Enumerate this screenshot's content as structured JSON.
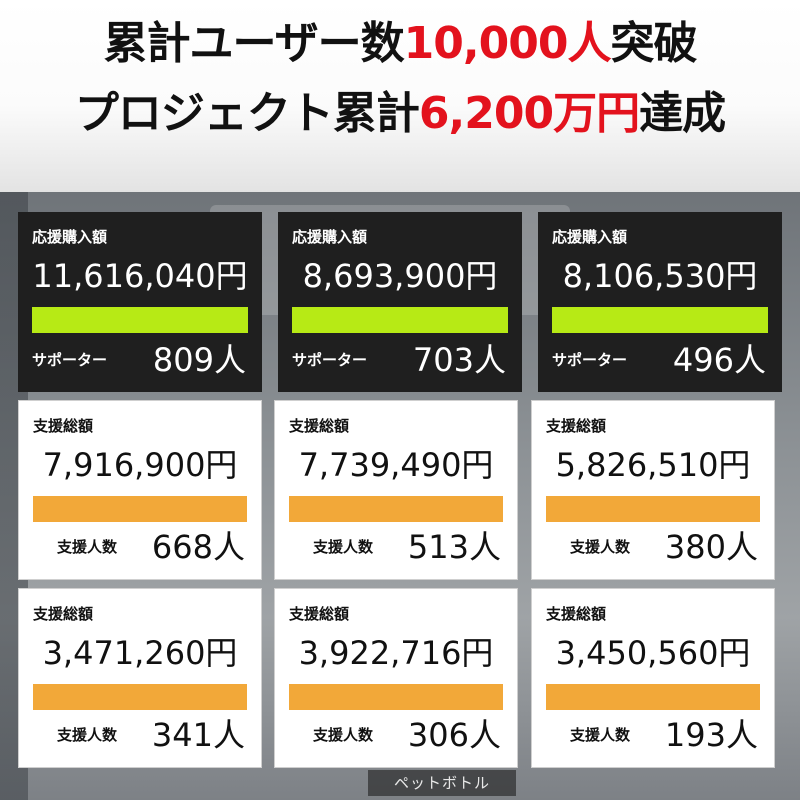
{
  "header": {
    "line1_prefix": "累計ユーザー数",
    "line1_highlight": "10,000人",
    "line1_suffix": "突破",
    "line2_prefix": "プロジェクト累計",
    "line2_highlight": "6,200万円",
    "line2_suffix": "達成"
  },
  "colors": {
    "highlight": "#e3121d",
    "dark_card_bar": "#b7ea15",
    "light_card_bar": "#f2a839",
    "dark_card_bg": "#1f1f1f"
  },
  "background_label": "ペットボトル",
  "cards": [
    {
      "label": "応援購入額",
      "amount": "11,616,040円",
      "sub_label": "サポーター",
      "count": "809人"
    },
    {
      "label": "応援購入額",
      "amount": "8,693,900円",
      "sub_label": "サポーター",
      "count": "703人"
    },
    {
      "label": "応援購入額",
      "amount": "8,106,530円",
      "sub_label": "サポーター",
      "count": "496人"
    },
    {
      "label": "支援総額",
      "amount": "7,916,900円",
      "sub_label": "支援人数",
      "count": "668人"
    },
    {
      "label": "支援総額",
      "amount": "7,739,490円",
      "sub_label": "支援人数",
      "count": "513人"
    },
    {
      "label": "支援総額",
      "amount": "5,826,510円",
      "sub_label": "支援人数",
      "count": "380人"
    },
    {
      "label": "支援総額",
      "amount": "3,471,260円",
      "sub_label": "支援人数",
      "count": "341人"
    },
    {
      "label": "支援総額",
      "amount": "3,922,716円",
      "sub_label": "支援人数",
      "count": "306人"
    },
    {
      "label": "支援総額",
      "amount": "3,450,560円",
      "sub_label": "支援人数",
      "count": "193人"
    }
  ]
}
